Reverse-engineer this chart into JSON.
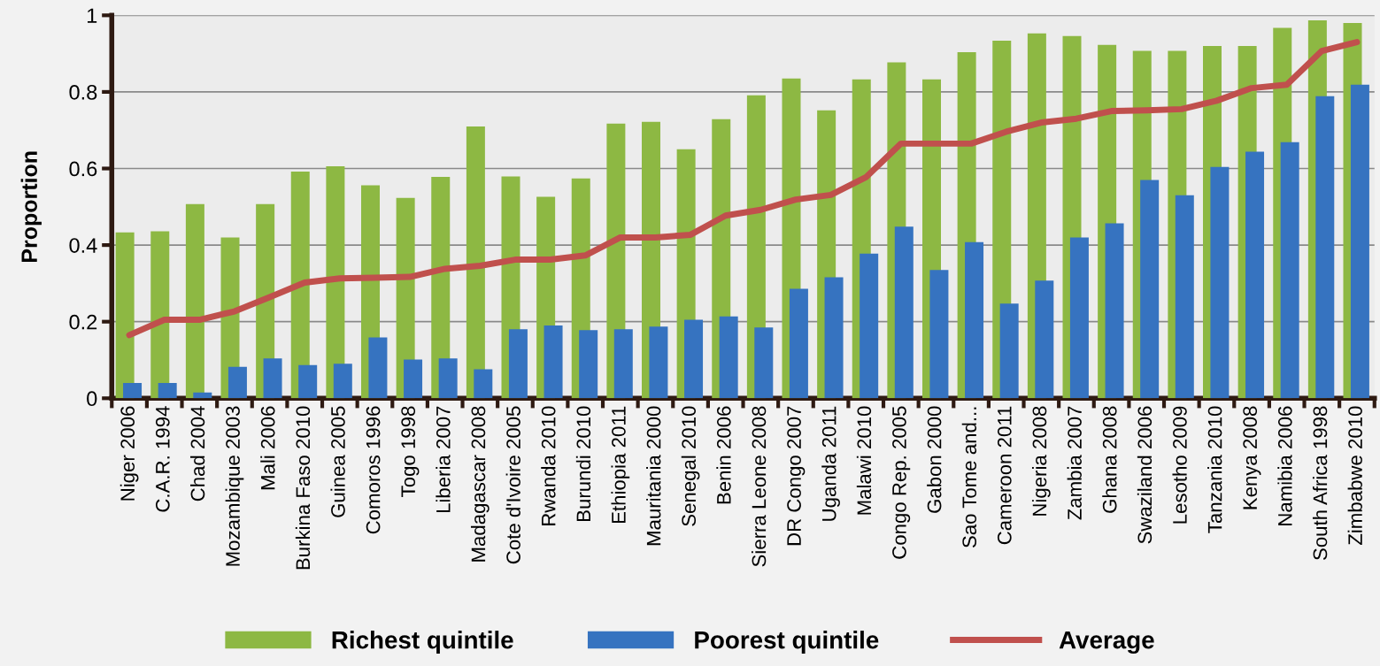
{
  "chart_data": {
    "type": "bar",
    "ylabel": "Proportion",
    "categories": [
      "Niger 2006",
      "C.A.R. 1994",
      "Chad 2004",
      "Mozambique 2003",
      "Mali 2006",
      "Burkina Faso 2010",
      "Guinea 2005",
      "Comoros 1996",
      "Togo 1998",
      "Liberia 2007",
      "Madagascar 2008",
      "Cote d'Ivoire 2005",
      "Rwanda 2010",
      "Burundi 2010",
      "Ethiopia 2011",
      "Mauritania 2000",
      "Senegal 2010",
      "Benin 2006",
      "Sierra Leone 2008",
      "DR Congo 2007",
      "Uganda 2011",
      "Malawi 2010",
      "Congo Rep. 2005",
      "Gabon 2000",
      "Sao Tome and...",
      "Cameroon 2011",
      "Nigeria 2008",
      "Zambia 2007",
      "Ghana 2008",
      "Swaziland 2006",
      "Lesotho 2009",
      "Tanzania 2010",
      "Kenya 2008",
      "Namibia 2006",
      "South Africa 1998",
      "Zimbabwe 2010"
    ],
    "series": [
      {
        "name": "Richest quintile",
        "color": "#8db843",
        "values": [
          0.433,
          0.436,
          0.507,
          0.42,
          0.507,
          0.592,
          0.606,
          0.556,
          0.523,
          0.578,
          0.71,
          0.579,
          0.526,
          0.574,
          0.717,
          0.722,
          0.65,
          0.729,
          0.791,
          0.835,
          0.752,
          0.833,
          0.877,
          0.833,
          0.904,
          0.934,
          0.953,
          0.946,
          0.923,
          0.907,
          0.907,
          0.92,
          0.92,
          0.967,
          0.987,
          0.98
        ]
      },
      {
        "name": "Poorest quintile",
        "color": "#3673c0",
        "values": [
          0.04,
          0.04,
          0.015,
          0.082,
          0.104,
          0.087,
          0.09,
          0.159,
          0.101,
          0.104,
          0.076,
          0.18,
          0.19,
          0.178,
          0.18,
          0.187,
          0.205,
          0.214,
          0.185,
          0.286,
          0.316,
          0.378,
          0.448,
          0.335,
          0.408,
          0.247,
          0.307,
          0.42,
          0.457,
          0.57,
          0.53,
          0.604,
          0.644,
          0.669,
          0.789,
          0.819
        ]
      },
      {
        "name": "Average",
        "type": "line",
        "color": "#c0504d",
        "values": [
          0.165,
          0.205,
          0.205,
          0.227,
          0.264,
          0.302,
          0.313,
          0.315,
          0.317,
          0.338,
          0.346,
          0.362,
          0.362,
          0.373,
          0.42,
          0.42,
          0.427,
          0.477,
          0.492,
          0.519,
          0.531,
          0.577,
          0.665,
          0.665,
          0.665,
          0.696,
          0.72,
          0.73,
          0.75,
          0.752,
          0.755,
          0.777,
          0.81,
          0.819,
          0.907,
          0.93
        ]
      }
    ],
    "ylim": [
      0,
      1
    ],
    "yticks": [
      0,
      0.2,
      0.4,
      0.6,
      0.8,
      1
    ],
    "grid": "y",
    "legend": "bottom",
    "marker": "none",
    "line_style": "solid"
  }
}
